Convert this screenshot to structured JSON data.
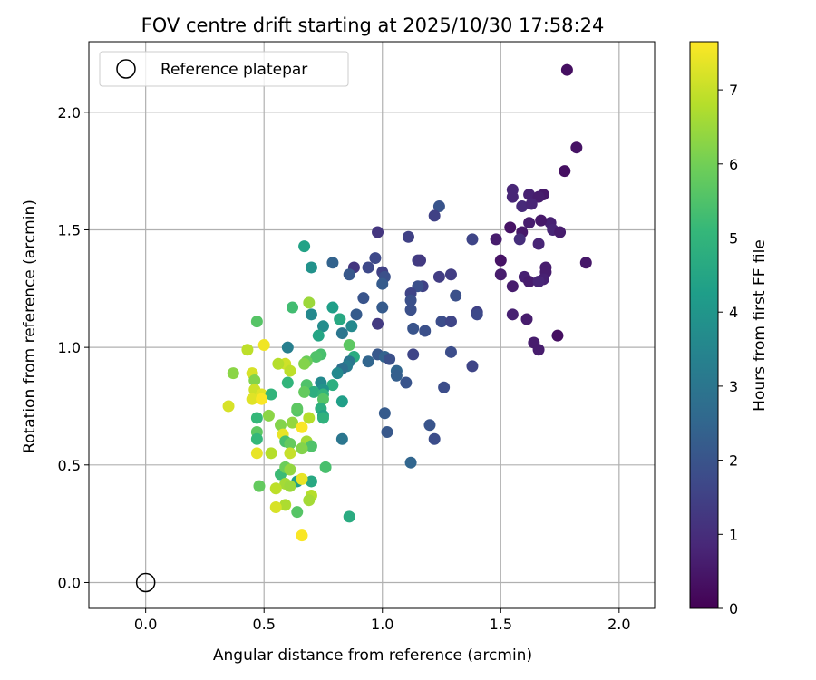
{
  "chart_data": {
    "type": "scatter",
    "title": "FOV centre drift starting at 2025/10/30 17:58:24",
    "xlabel": "Angular distance from reference (arcmin)",
    "ylabel": "Rotation from reference (arcmin)",
    "xlim": [
      -0.24,
      2.15
    ],
    "ylim": [
      -0.11,
      2.3
    ],
    "xticks": [
      "0.0",
      "0.5",
      "1.0",
      "1.5",
      "2.0"
    ],
    "yticks": [
      "0.0",
      "0.5",
      "1.0",
      "1.5",
      "2.0"
    ],
    "grid": true,
    "colorbar": {
      "label": "Hours from first FF file",
      "range": [
        0,
        7.65
      ],
      "ticks": [
        "0",
        "1",
        "2",
        "3",
        "4",
        "5",
        "6",
        "7"
      ],
      "colormap": "viridis"
    },
    "legend": {
      "position": "top-left",
      "entries": [
        "Reference platepar"
      ]
    },
    "reference_point": {
      "x": 0.0,
      "y": 0.0
    },
    "points": [
      {
        "x": 1.78,
        "y": 2.18,
        "h": 0.3
      },
      {
        "x": 1.82,
        "y": 1.85,
        "h": 0.4
      },
      {
        "x": 1.77,
        "y": 1.75,
        "h": 0.3
      },
      {
        "x": 1.55,
        "y": 1.67,
        "h": 0.8
      },
      {
        "x": 1.55,
        "y": 1.64,
        "h": 0.8
      },
      {
        "x": 1.62,
        "y": 1.65,
        "h": 0.7
      },
      {
        "x": 1.68,
        "y": 1.65,
        "h": 0.5
      },
      {
        "x": 1.66,
        "y": 1.64,
        "h": 0.6
      },
      {
        "x": 1.59,
        "y": 1.6,
        "h": 0.9
      },
      {
        "x": 1.63,
        "y": 1.61,
        "h": 0.8
      },
      {
        "x": 1.71,
        "y": 1.53,
        "h": 0.7
      },
      {
        "x": 1.72,
        "y": 1.5,
        "h": 0.8
      },
      {
        "x": 1.75,
        "y": 1.49,
        "h": 0.6
      },
      {
        "x": 1.67,
        "y": 1.54,
        "h": 0.5
      },
      {
        "x": 1.62,
        "y": 1.53,
        "h": 0.6
      },
      {
        "x": 1.54,
        "y": 1.51,
        "h": 0.4
      },
      {
        "x": 1.59,
        "y": 1.49,
        "h": 0.5
      },
      {
        "x": 1.48,
        "y": 1.46,
        "h": 0.6
      },
      {
        "x": 1.58,
        "y": 1.46,
        "h": 1.0
      },
      {
        "x": 1.66,
        "y": 1.44,
        "h": 0.8
      },
      {
        "x": 1.5,
        "y": 1.37,
        "h": 0.4
      },
      {
        "x": 1.86,
        "y": 1.36,
        "h": 0.5
      },
      {
        "x": 1.69,
        "y": 1.34,
        "h": 0.6
      },
      {
        "x": 1.69,
        "y": 1.32,
        "h": 0.6
      },
      {
        "x": 1.5,
        "y": 1.31,
        "h": 0.6
      },
      {
        "x": 1.6,
        "y": 1.3,
        "h": 0.7
      },
      {
        "x": 1.62,
        "y": 1.28,
        "h": 0.6
      },
      {
        "x": 1.68,
        "y": 1.29,
        "h": 0.7
      },
      {
        "x": 1.66,
        "y": 1.28,
        "h": 0.8
      },
      {
        "x": 1.55,
        "y": 1.26,
        "h": 0.6
      },
      {
        "x": 1.55,
        "y": 1.14,
        "h": 0.7
      },
      {
        "x": 1.61,
        "y": 1.12,
        "h": 0.6
      },
      {
        "x": 1.74,
        "y": 1.05,
        "h": 0.3
      },
      {
        "x": 1.64,
        "y": 1.02,
        "h": 0.6
      },
      {
        "x": 1.66,
        "y": 0.99,
        "h": 0.6
      },
      {
        "x": 1.24,
        "y": 1.6,
        "h": 2.0
      },
      {
        "x": 1.22,
        "y": 1.56,
        "h": 1.5
      },
      {
        "x": 0.98,
        "y": 1.49,
        "h": 1.2
      },
      {
        "x": 1.11,
        "y": 1.47,
        "h": 1.5
      },
      {
        "x": 1.38,
        "y": 1.46,
        "h": 1.6
      },
      {
        "x": 1.15,
        "y": 1.37,
        "h": 1.4
      },
      {
        "x": 1.16,
        "y": 1.37,
        "h": 1.3
      },
      {
        "x": 0.97,
        "y": 1.38,
        "h": 1.7
      },
      {
        "x": 0.79,
        "y": 1.36,
        "h": 2.4
      },
      {
        "x": 0.88,
        "y": 1.34,
        "h": 1.2
      },
      {
        "x": 0.94,
        "y": 1.34,
        "h": 1.7
      },
      {
        "x": 1.0,
        "y": 1.32,
        "h": 1.5
      },
      {
        "x": 0.86,
        "y": 1.31,
        "h": 2.1
      },
      {
        "x": 1.01,
        "y": 1.3,
        "h": 1.9
      },
      {
        "x": 1.24,
        "y": 1.3,
        "h": 1.4
      },
      {
        "x": 1.29,
        "y": 1.31,
        "h": 1.4
      },
      {
        "x": 1.0,
        "y": 1.27,
        "h": 2.2
      },
      {
        "x": 1.17,
        "y": 1.26,
        "h": 1.5
      },
      {
        "x": 1.15,
        "y": 1.26,
        "h": 1.9
      },
      {
        "x": 1.12,
        "y": 1.23,
        "h": 1.6
      },
      {
        "x": 1.12,
        "y": 1.2,
        "h": 1.9
      },
      {
        "x": 1.31,
        "y": 1.22,
        "h": 1.9
      },
      {
        "x": 0.92,
        "y": 1.21,
        "h": 2.0
      },
      {
        "x": 1.0,
        "y": 1.17,
        "h": 2.2
      },
      {
        "x": 1.12,
        "y": 1.16,
        "h": 1.9
      },
      {
        "x": 1.4,
        "y": 1.15,
        "h": 1.5
      },
      {
        "x": 1.4,
        "y": 1.14,
        "h": 1.7
      },
      {
        "x": 0.89,
        "y": 1.14,
        "h": 2.2
      },
      {
        "x": 1.25,
        "y": 1.11,
        "h": 1.8
      },
      {
        "x": 1.29,
        "y": 1.11,
        "h": 1.6
      },
      {
        "x": 0.98,
        "y": 1.1,
        "h": 1.3
      },
      {
        "x": 1.13,
        "y": 1.08,
        "h": 2.0
      },
      {
        "x": 1.18,
        "y": 1.07,
        "h": 1.9
      },
      {
        "x": 0.98,
        "y": 0.97,
        "h": 2.1
      },
      {
        "x": 1.01,
        "y": 0.96,
        "h": 2.4
      },
      {
        "x": 1.03,
        "y": 0.95,
        "h": 1.9
      },
      {
        "x": 1.13,
        "y": 0.97,
        "h": 1.6
      },
      {
        "x": 1.29,
        "y": 0.98,
        "h": 1.8
      },
      {
        "x": 1.38,
        "y": 0.92,
        "h": 1.6
      },
      {
        "x": 0.94,
        "y": 0.94,
        "h": 2.5
      },
      {
        "x": 1.06,
        "y": 0.9,
        "h": 2.5
      },
      {
        "x": 1.06,
        "y": 0.88,
        "h": 2.3
      },
      {
        "x": 1.1,
        "y": 0.85,
        "h": 2.0
      },
      {
        "x": 1.26,
        "y": 0.83,
        "h": 1.8
      },
      {
        "x": 1.01,
        "y": 0.72,
        "h": 2.2
      },
      {
        "x": 1.2,
        "y": 0.67,
        "h": 2.0
      },
      {
        "x": 1.02,
        "y": 0.64,
        "h": 2.1
      },
      {
        "x": 1.22,
        "y": 0.61,
        "h": 1.8
      },
      {
        "x": 1.12,
        "y": 0.51,
        "h": 2.5
      },
      {
        "x": 0.67,
        "y": 1.43,
        "h": 4.4
      },
      {
        "x": 0.7,
        "y": 1.34,
        "h": 3.9
      },
      {
        "x": 0.69,
        "y": 1.19,
        "h": 6.5
      },
      {
        "x": 0.62,
        "y": 1.17,
        "h": 5.3
      },
      {
        "x": 0.79,
        "y": 1.17,
        "h": 4.3
      },
      {
        "x": 0.7,
        "y": 1.14,
        "h": 3.6
      },
      {
        "x": 0.82,
        "y": 1.12,
        "h": 3.8
      },
      {
        "x": 0.82,
        "y": 1.12,
        "h": 4.6
      },
      {
        "x": 0.75,
        "y": 1.09,
        "h": 3.7
      },
      {
        "x": 0.87,
        "y": 1.09,
        "h": 3.6
      },
      {
        "x": 0.83,
        "y": 1.06,
        "h": 3.0
      },
      {
        "x": 0.73,
        "y": 1.05,
        "h": 4.5
      },
      {
        "x": 0.86,
        "y": 1.01,
        "h": 5.7
      },
      {
        "x": 0.6,
        "y": 1.0,
        "h": 3.3
      },
      {
        "x": 0.74,
        "y": 0.97,
        "h": 5.4
      },
      {
        "x": 0.72,
        "y": 0.96,
        "h": 5.5
      },
      {
        "x": 0.88,
        "y": 0.96,
        "h": 4.7
      },
      {
        "x": 0.86,
        "y": 0.94,
        "h": 3.0
      },
      {
        "x": 0.68,
        "y": 0.94,
        "h": 5.9
      },
      {
        "x": 0.67,
        "y": 0.93,
        "h": 6.2
      },
      {
        "x": 0.85,
        "y": 0.92,
        "h": 3.2
      },
      {
        "x": 0.83,
        "y": 0.91,
        "h": 2.8
      },
      {
        "x": 0.81,
        "y": 0.89,
        "h": 3.6
      },
      {
        "x": 0.74,
        "y": 0.85,
        "h": 3.6
      },
      {
        "x": 0.68,
        "y": 0.84,
        "h": 5.5
      },
      {
        "x": 0.79,
        "y": 0.84,
        "h": 4.8
      },
      {
        "x": 0.75,
        "y": 0.82,
        "h": 3.9
      },
      {
        "x": 0.71,
        "y": 0.81,
        "h": 4.8
      },
      {
        "x": 0.67,
        "y": 0.81,
        "h": 5.8
      },
      {
        "x": 0.75,
        "y": 0.8,
        "h": 5.0
      },
      {
        "x": 0.83,
        "y": 0.77,
        "h": 4.3
      },
      {
        "x": 0.75,
        "y": 0.78,
        "h": 5.6
      },
      {
        "x": 0.74,
        "y": 0.74,
        "h": 4.8
      },
      {
        "x": 0.75,
        "y": 0.71,
        "h": 4.4
      },
      {
        "x": 0.75,
        "y": 0.7,
        "h": 4.9
      },
      {
        "x": 0.64,
        "y": 0.73,
        "h": 5.6
      },
      {
        "x": 0.69,
        "y": 0.7,
        "h": 6.8
      },
      {
        "x": 0.83,
        "y": 0.61,
        "h": 3.0
      },
      {
        "x": 0.76,
        "y": 0.49,
        "h": 5.4
      },
      {
        "x": 0.86,
        "y": 0.28,
        "h": 4.7
      },
      {
        "x": 0.64,
        "y": 0.3,
        "h": 5.6
      },
      {
        "x": 0.64,
        "y": 0.43,
        "h": 4.3
      },
      {
        "x": 0.7,
        "y": 0.43,
        "h": 4.6
      },
      {
        "x": 0.57,
        "y": 0.46,
        "h": 5.2
      },
      {
        "x": 0.47,
        "y": 1.11,
        "h": 5.6
      },
      {
        "x": 0.5,
        "y": 1.01,
        "h": 7.5
      },
      {
        "x": 0.43,
        "y": 0.99,
        "h": 6.9
      },
      {
        "x": 0.59,
        "y": 0.93,
        "h": 7.1
      },
      {
        "x": 0.56,
        "y": 0.93,
        "h": 6.8
      },
      {
        "x": 0.61,
        "y": 0.9,
        "h": 6.9
      },
      {
        "x": 0.37,
        "y": 0.89,
        "h": 6.3
      },
      {
        "x": 0.45,
        "y": 0.89,
        "h": 7.2
      },
      {
        "x": 0.46,
        "y": 0.86,
        "h": 6.2
      },
      {
        "x": 0.6,
        "y": 0.85,
        "h": 5.0
      },
      {
        "x": 0.46,
        "y": 0.82,
        "h": 7.1
      },
      {
        "x": 0.49,
        "y": 0.8,
        "h": 7.3
      },
      {
        "x": 0.53,
        "y": 0.8,
        "h": 5.0
      },
      {
        "x": 0.45,
        "y": 0.78,
        "h": 7.3
      },
      {
        "x": 0.49,
        "y": 0.78,
        "h": 7.6
      },
      {
        "x": 0.35,
        "y": 0.75,
        "h": 7.2
      },
      {
        "x": 0.64,
        "y": 0.74,
        "h": 5.7
      },
      {
        "x": 0.47,
        "y": 0.7,
        "h": 5.1
      },
      {
        "x": 0.52,
        "y": 0.71,
        "h": 6.3
      },
      {
        "x": 0.62,
        "y": 0.68,
        "h": 6.4
      },
      {
        "x": 0.57,
        "y": 0.67,
        "h": 6.2
      },
      {
        "x": 0.66,
        "y": 0.66,
        "h": 7.6
      },
      {
        "x": 0.58,
        "y": 0.63,
        "h": 7.4
      },
      {
        "x": 0.47,
        "y": 0.64,
        "h": 5.7
      },
      {
        "x": 0.47,
        "y": 0.61,
        "h": 5.1
      },
      {
        "x": 0.59,
        "y": 0.6,
        "h": 5.4
      },
      {
        "x": 0.68,
        "y": 0.6,
        "h": 6.6
      },
      {
        "x": 0.61,
        "y": 0.59,
        "h": 5.8
      },
      {
        "x": 0.7,
        "y": 0.58,
        "h": 5.5
      },
      {
        "x": 0.66,
        "y": 0.57,
        "h": 6.2
      },
      {
        "x": 0.53,
        "y": 0.55,
        "h": 6.8
      },
      {
        "x": 0.61,
        "y": 0.55,
        "h": 7.0
      },
      {
        "x": 0.47,
        "y": 0.55,
        "h": 7.4
      },
      {
        "x": 0.59,
        "y": 0.49,
        "h": 5.9
      },
      {
        "x": 0.61,
        "y": 0.48,
        "h": 6.4
      },
      {
        "x": 0.59,
        "y": 0.42,
        "h": 6.6
      },
      {
        "x": 0.61,
        "y": 0.41,
        "h": 6.5
      },
      {
        "x": 0.48,
        "y": 0.41,
        "h": 5.8
      },
      {
        "x": 0.55,
        "y": 0.4,
        "h": 6.9
      },
      {
        "x": 0.66,
        "y": 0.44,
        "h": 7.4
      },
      {
        "x": 0.7,
        "y": 0.37,
        "h": 6.8
      },
      {
        "x": 0.69,
        "y": 0.35,
        "h": 6.6
      },
      {
        "x": 0.59,
        "y": 0.33,
        "h": 6.7
      },
      {
        "x": 0.55,
        "y": 0.32,
        "h": 7.2
      },
      {
        "x": 0.66,
        "y": 0.2,
        "h": 7.6
      }
    ]
  }
}
